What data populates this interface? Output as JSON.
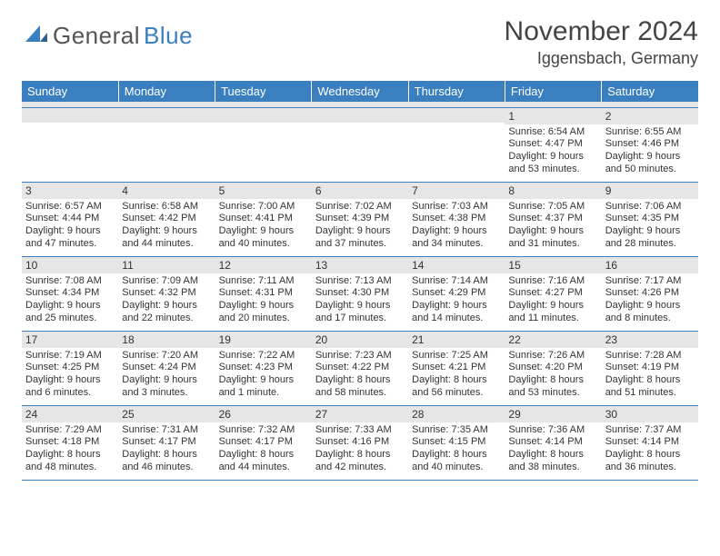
{
  "brand": {
    "word1": "General",
    "word2": "Blue"
  },
  "header": {
    "month_year": "November 2024",
    "location": "Iggensbach, Germany"
  },
  "columns": [
    "Sunday",
    "Monday",
    "Tuesday",
    "Wednesday",
    "Thursday",
    "Friday",
    "Saturday"
  ],
  "colors": {
    "header_bg": "#3a7fbf",
    "header_text": "#ffffff",
    "daynum_bg": "#e6e6e6",
    "rule": "#3a7fbf",
    "body_text": "#333333",
    "brand_grey": "#555555",
    "brand_blue": "#3a7fbf",
    "page_bg": "#ffffff"
  },
  "weeks": [
    [
      {
        "n": "",
        "sr": "",
        "ss": "",
        "d1": "",
        "d2": ""
      },
      {
        "n": "",
        "sr": "",
        "ss": "",
        "d1": "",
        "d2": ""
      },
      {
        "n": "",
        "sr": "",
        "ss": "",
        "d1": "",
        "d2": ""
      },
      {
        "n": "",
        "sr": "",
        "ss": "",
        "d1": "",
        "d2": ""
      },
      {
        "n": "",
        "sr": "",
        "ss": "",
        "d1": "",
        "d2": ""
      },
      {
        "n": "1",
        "sr": "Sunrise: 6:54 AM",
        "ss": "Sunset: 4:47 PM",
        "d1": "Daylight: 9 hours",
        "d2": "and 53 minutes."
      },
      {
        "n": "2",
        "sr": "Sunrise: 6:55 AM",
        "ss": "Sunset: 4:46 PM",
        "d1": "Daylight: 9 hours",
        "d2": "and 50 minutes."
      }
    ],
    [
      {
        "n": "3",
        "sr": "Sunrise: 6:57 AM",
        "ss": "Sunset: 4:44 PM",
        "d1": "Daylight: 9 hours",
        "d2": "and 47 minutes."
      },
      {
        "n": "4",
        "sr": "Sunrise: 6:58 AM",
        "ss": "Sunset: 4:42 PM",
        "d1": "Daylight: 9 hours",
        "d2": "and 44 minutes."
      },
      {
        "n": "5",
        "sr": "Sunrise: 7:00 AM",
        "ss": "Sunset: 4:41 PM",
        "d1": "Daylight: 9 hours",
        "d2": "and 40 minutes."
      },
      {
        "n": "6",
        "sr": "Sunrise: 7:02 AM",
        "ss": "Sunset: 4:39 PM",
        "d1": "Daylight: 9 hours",
        "d2": "and 37 minutes."
      },
      {
        "n": "7",
        "sr": "Sunrise: 7:03 AM",
        "ss": "Sunset: 4:38 PM",
        "d1": "Daylight: 9 hours",
        "d2": "and 34 minutes."
      },
      {
        "n": "8",
        "sr": "Sunrise: 7:05 AM",
        "ss": "Sunset: 4:37 PM",
        "d1": "Daylight: 9 hours",
        "d2": "and 31 minutes."
      },
      {
        "n": "9",
        "sr": "Sunrise: 7:06 AM",
        "ss": "Sunset: 4:35 PM",
        "d1": "Daylight: 9 hours",
        "d2": "and 28 minutes."
      }
    ],
    [
      {
        "n": "10",
        "sr": "Sunrise: 7:08 AM",
        "ss": "Sunset: 4:34 PM",
        "d1": "Daylight: 9 hours",
        "d2": "and 25 minutes."
      },
      {
        "n": "11",
        "sr": "Sunrise: 7:09 AM",
        "ss": "Sunset: 4:32 PM",
        "d1": "Daylight: 9 hours",
        "d2": "and 22 minutes."
      },
      {
        "n": "12",
        "sr": "Sunrise: 7:11 AM",
        "ss": "Sunset: 4:31 PM",
        "d1": "Daylight: 9 hours",
        "d2": "and 20 minutes."
      },
      {
        "n": "13",
        "sr": "Sunrise: 7:13 AM",
        "ss": "Sunset: 4:30 PM",
        "d1": "Daylight: 9 hours",
        "d2": "and 17 minutes."
      },
      {
        "n": "14",
        "sr": "Sunrise: 7:14 AM",
        "ss": "Sunset: 4:29 PM",
        "d1": "Daylight: 9 hours",
        "d2": "and 14 minutes."
      },
      {
        "n": "15",
        "sr": "Sunrise: 7:16 AM",
        "ss": "Sunset: 4:27 PM",
        "d1": "Daylight: 9 hours",
        "d2": "and 11 minutes."
      },
      {
        "n": "16",
        "sr": "Sunrise: 7:17 AM",
        "ss": "Sunset: 4:26 PM",
        "d1": "Daylight: 9 hours",
        "d2": "and 8 minutes."
      }
    ],
    [
      {
        "n": "17",
        "sr": "Sunrise: 7:19 AM",
        "ss": "Sunset: 4:25 PM",
        "d1": "Daylight: 9 hours",
        "d2": "and 6 minutes."
      },
      {
        "n": "18",
        "sr": "Sunrise: 7:20 AM",
        "ss": "Sunset: 4:24 PM",
        "d1": "Daylight: 9 hours",
        "d2": "and 3 minutes."
      },
      {
        "n": "19",
        "sr": "Sunrise: 7:22 AM",
        "ss": "Sunset: 4:23 PM",
        "d1": "Daylight: 9 hours",
        "d2": "and 1 minute."
      },
      {
        "n": "20",
        "sr": "Sunrise: 7:23 AM",
        "ss": "Sunset: 4:22 PM",
        "d1": "Daylight: 8 hours",
        "d2": "and 58 minutes."
      },
      {
        "n": "21",
        "sr": "Sunrise: 7:25 AM",
        "ss": "Sunset: 4:21 PM",
        "d1": "Daylight: 8 hours",
        "d2": "and 56 minutes."
      },
      {
        "n": "22",
        "sr": "Sunrise: 7:26 AM",
        "ss": "Sunset: 4:20 PM",
        "d1": "Daylight: 8 hours",
        "d2": "and 53 minutes."
      },
      {
        "n": "23",
        "sr": "Sunrise: 7:28 AM",
        "ss": "Sunset: 4:19 PM",
        "d1": "Daylight: 8 hours",
        "d2": "and 51 minutes."
      }
    ],
    [
      {
        "n": "24",
        "sr": "Sunrise: 7:29 AM",
        "ss": "Sunset: 4:18 PM",
        "d1": "Daylight: 8 hours",
        "d2": "and 48 minutes."
      },
      {
        "n": "25",
        "sr": "Sunrise: 7:31 AM",
        "ss": "Sunset: 4:17 PM",
        "d1": "Daylight: 8 hours",
        "d2": "and 46 minutes."
      },
      {
        "n": "26",
        "sr": "Sunrise: 7:32 AM",
        "ss": "Sunset: 4:17 PM",
        "d1": "Daylight: 8 hours",
        "d2": "and 44 minutes."
      },
      {
        "n": "27",
        "sr": "Sunrise: 7:33 AM",
        "ss": "Sunset: 4:16 PM",
        "d1": "Daylight: 8 hours",
        "d2": "and 42 minutes."
      },
      {
        "n": "28",
        "sr": "Sunrise: 7:35 AM",
        "ss": "Sunset: 4:15 PM",
        "d1": "Daylight: 8 hours",
        "d2": "and 40 minutes."
      },
      {
        "n": "29",
        "sr": "Sunrise: 7:36 AM",
        "ss": "Sunset: 4:14 PM",
        "d1": "Daylight: 8 hours",
        "d2": "and 38 minutes."
      },
      {
        "n": "30",
        "sr": "Sunrise: 7:37 AM",
        "ss": "Sunset: 4:14 PM",
        "d1": "Daylight: 8 hours",
        "d2": "and 36 minutes."
      }
    ]
  ]
}
